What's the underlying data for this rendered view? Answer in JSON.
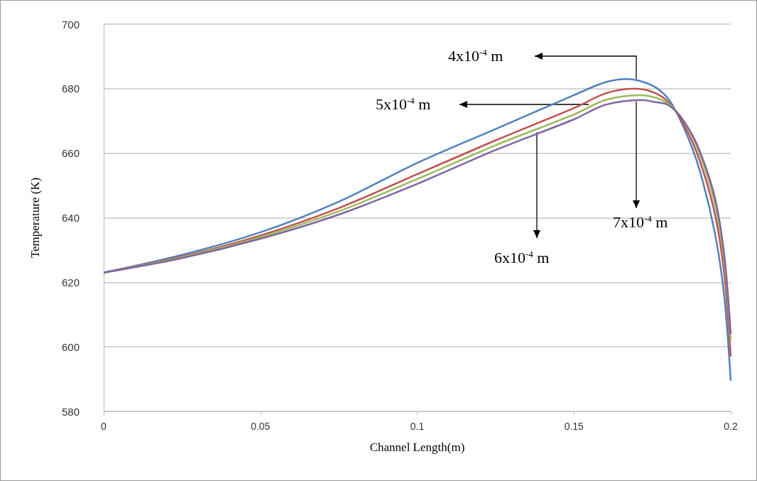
{
  "chart_data": {
    "type": "line",
    "xlabel": "Channel Length(m)",
    "ylabel": "Temperature (K)",
    "annotations": [
      "4x10$^{-4}$ m",
      "5x10$^{-4}$ m",
      "6x10$^{-4}$ m",
      "7x10$^{-4}$ m"
    ],
    "xlim": [
      0,
      0.2
    ],
    "xticks": [
      0,
      0.05,
      0.1,
      0.15,
      0.2
    ],
    "ylim": [
      580,
      700
    ],
    "yticks": [
      580,
      600,
      620,
      640,
      660,
      680,
      700
    ],
    "grid": "y",
    "marker": "none",
    "line_style": "solid",
    "series": [
      {
        "color": "#4f81bd",
        "x": [
          0,
          0.025,
          0.05,
          0.075,
          0.1,
          0.125,
          0.15,
          0.16,
          0.167,
          0.175,
          0.18,
          0.185,
          0.19,
          0.195,
          0.198,
          0.2
        ],
        "values": [
          623,
          628.5,
          635.5,
          645,
          657,
          667.5,
          678,
          682,
          683,
          681,
          677,
          668,
          655,
          635,
          615,
          589.5
        ]
      },
      {
        "color": "#c0504d",
        "x": [
          0,
          0.025,
          0.05,
          0.075,
          0.1,
          0.125,
          0.15,
          0.16,
          0.169,
          0.175,
          0.18,
          0.185,
          0.19,
          0.195,
          0.198,
          0.2
        ],
        "values": [
          623,
          628,
          634.5,
          643,
          653.5,
          664,
          674,
          678.5,
          680,
          679,
          676,
          669,
          658,
          641,
          622,
          597
        ]
      },
      {
        "color": "#9bbb59",
        "x": [
          0,
          0.025,
          0.05,
          0.075,
          0.1,
          0.125,
          0.15,
          0.16,
          0.171,
          0.175,
          0.18,
          0.185,
          0.19,
          0.195,
          0.198,
          0.2
        ],
        "values": [
          623,
          627.8,
          634,
          642,
          652,
          662.5,
          672,
          676.5,
          678,
          677.5,
          675.5,
          670,
          660,
          644,
          626,
          602
        ]
      },
      {
        "color": "#8064a2",
        "x": [
          0,
          0.025,
          0.05,
          0.075,
          0.1,
          0.125,
          0.15,
          0.16,
          0.172,
          0.175,
          0.18,
          0.185,
          0.19,
          0.195,
          0.198,
          0.2
        ],
        "values": [
          623,
          627.5,
          633.5,
          641,
          650.5,
          661,
          670.5,
          675,
          676.5,
          676,
          675,
          670,
          661,
          646,
          628,
          604
        ]
      }
    ]
  }
}
